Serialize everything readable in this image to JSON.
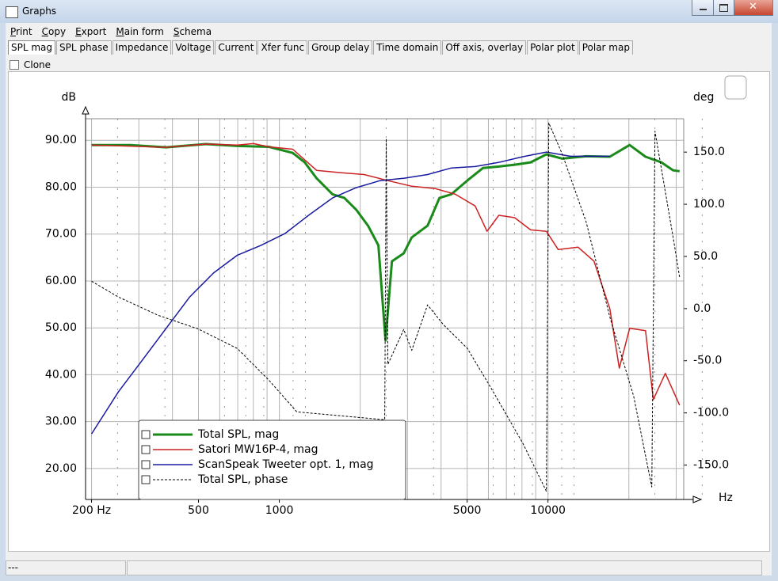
{
  "window": {
    "title": "Graphs"
  },
  "menu": [
    "Print",
    "Copy",
    "Export",
    "Main form",
    "Schema"
  ],
  "tabs": [
    "SPL mag",
    "SPL phase",
    "Impedance",
    "Voltage",
    "Current",
    "Xfer func",
    "Group delay",
    "Time domain",
    "Off axis, overlay",
    "Polar plot",
    "Polar map"
  ],
  "clone": "Clone",
  "status": "---",
  "chart_data": {
    "type": "line",
    "y_label": "dB",
    "y2_label": "deg",
    "x_label": "Hz",
    "log_x": true,
    "grid": true,
    "xlim": [
      190,
      32000
    ],
    "xticks": [
      {
        "value": 200,
        "label": "200 Hz"
      },
      500,
      1000,
      5000,
      10000
    ],
    "ylim": [
      13.4,
      94.6
    ],
    "yticks": [
      {
        "value": 20,
        "label": "20.00"
      },
      {
        "value": 30,
        "label": "30.00"
      },
      {
        "value": 40,
        "label": "40.00"
      },
      {
        "value": 50,
        "label": "50.00"
      },
      {
        "value": 60,
        "label": "60.00"
      },
      {
        "value": 70,
        "label": "70.00"
      },
      {
        "value": 80,
        "label": "80.00"
      },
      {
        "value": 90,
        "label": "90.00"
      }
    ],
    "y2lim": [
      -183,
      182
    ],
    "y2ticks": [
      {
        "value": -150,
        "label": "-150.0"
      },
      {
        "value": -100,
        "label": "-100.0"
      },
      {
        "value": -50,
        "label": "-50.0"
      },
      {
        "value": 0,
        "label": "0.0"
      },
      {
        "value": 50,
        "label": "50.0"
      },
      {
        "value": 100,
        "label": "100.0"
      },
      {
        "value": 150,
        "label": "150.0"
      }
    ],
    "series": [
      {
        "name": "Total SPL, mag",
        "color": "#1a8a1a",
        "line_width": 3,
        "x": [
          200,
          279,
          379,
          532,
          698,
          915,
          1122,
          1243,
          1376,
          1577,
          1746,
          1932,
          2138,
          2337,
          2485,
          2624,
          2904,
          3111,
          3562,
          3945,
          4367,
          5003,
          5731,
          6564,
          7516,
          8610,
          9859,
          11298,
          13870,
          16980,
          20129,
          23070,
          26420,
          29240,
          30880
        ],
        "values": [
          89,
          89,
          88.5,
          89.2,
          88.8,
          88.6,
          87.3,
          85.3,
          81.9,
          78.5,
          77.7,
          75.2,
          71.8,
          67.6,
          47.3,
          64.2,
          65.9,
          69.3,
          71.8,
          77.7,
          78.5,
          81.4,
          84.1,
          84.4,
          84.8,
          85.3,
          87,
          86.1,
          86.6,
          86.5,
          89,
          86.5,
          85.3,
          83.6,
          83.4
        ]
      },
      {
        "name": "Satori MW16P-4, mag",
        "color": "#cc2222",
        "line_width": 1.5,
        "x": [
          200,
          379,
          532,
          698,
          800,
          915,
          1122,
          1376,
          1687,
          2070,
          2535,
          3111,
          3811,
          4519,
          5355,
          5929,
          6564,
          7516,
          8610,
          9859,
          10914,
          12945,
          14835,
          16980,
          18420,
          20129,
          23070,
          24660,
          27330,
          30880
        ],
        "values": [
          89,
          88.5,
          89.2,
          89,
          89.3,
          88.6,
          88.1,
          83.6,
          83.1,
          82.7,
          81.4,
          80.2,
          79.7,
          78.5,
          76,
          70.6,
          74,
          73.5,
          70.9,
          70.6,
          66.7,
          67.2,
          64.2,
          54.1,
          41.4,
          49.9,
          49.4,
          34.7,
          40.3,
          33.5
        ]
      },
      {
        "name": "ScanSpeak Tweeter opt. 1, mag",
        "color": "#1a1aa0",
        "line_width": 1.5,
        "x": [
          200,
          252,
          309,
          379,
          464,
          569,
          698,
          855,
          1049,
          1285,
          1577,
          1932,
          2370,
          2904,
          3562,
          4367,
          5355,
          6564,
          8054,
          9859,
          12100,
          14835,
          16980
        ],
        "values": [
          27.4,
          36.4,
          43.1,
          49.9,
          56.6,
          61.7,
          65.5,
          67.6,
          70.1,
          74,
          77.7,
          79.9,
          81.4,
          81.9,
          82.7,
          84.1,
          84.4,
          85.3,
          86.5,
          87.5,
          86.6,
          86.6,
          86.6
        ]
      },
      {
        "name": "Total SPL, phase",
        "color": "#000000",
        "line_width": 1,
        "dashed": true,
        "axis": "y2",
        "x": [
          200,
          252,
          354,
          497,
          698,
          915,
          1161,
          2468,
          2500,
          2535,
          2904,
          3111,
          3562,
          4083,
          5003,
          6135,
          8054,
          9859,
          10066,
          11298,
          13870,
          16980,
          20838,
          24340,
          25010,
          29240,
          30880
        ],
        "values": [
          26.2,
          11,
          -6.4,
          -19.3,
          -38.3,
          -68.7,
          -99,
          -106.6,
          162.9,
          -53.5,
          -20,
          -40,
          3.5,
          -15.5,
          -38,
          -76,
          -129,
          -175,
          178,
          148,
          83,
          -8,
          -84,
          -171,
          170,
          68,
          30
        ]
      }
    ]
  }
}
